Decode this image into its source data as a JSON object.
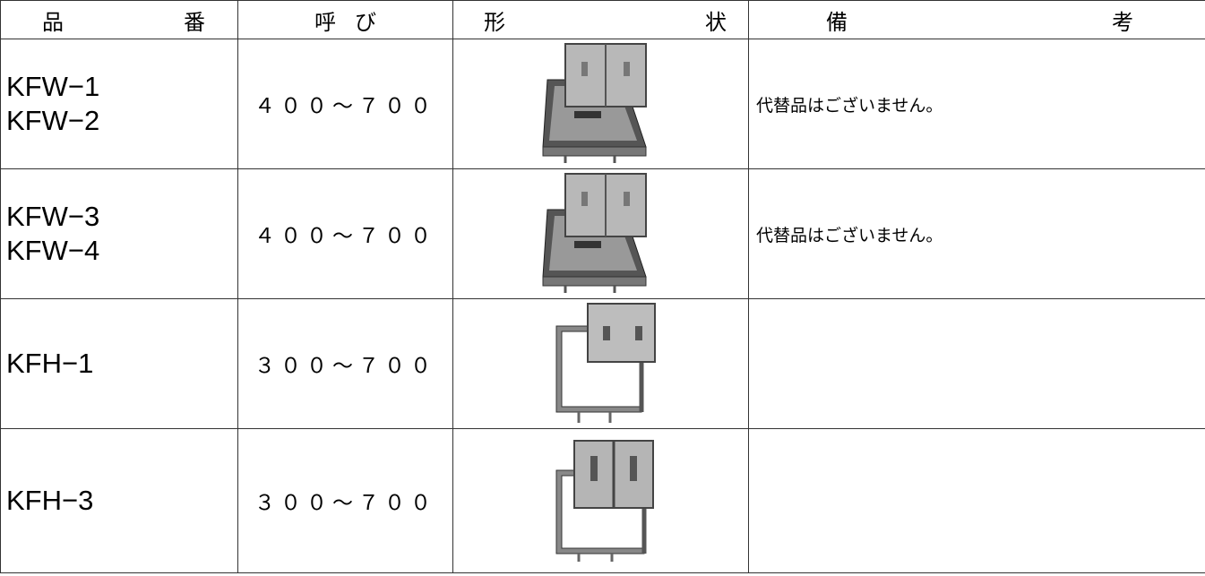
{
  "table": {
    "header": [
      "品 番",
      "呼 び",
      "形 状",
      "備 考"
    ],
    "rows": [
      {
        "codes": [
          "KFW−1",
          "KFW−2"
        ],
        "size": "４００〜７００",
        "note": "代替品はございません。",
        "shape": "double"
      },
      {
        "codes": [
          "KFW−3",
          "KFW−4"
        ],
        "size": "４００〜７００",
        "note": "代替品はございません。",
        "shape": "double"
      },
      {
        "codes": [
          "KFH−1"
        ],
        "size": "３００〜７００",
        "note": "",
        "shape": "single"
      },
      {
        "codes": [
          "KFH−3"
        ],
        "size": "３００〜７００",
        "note": "",
        "shape": "split"
      }
    ]
  }
}
